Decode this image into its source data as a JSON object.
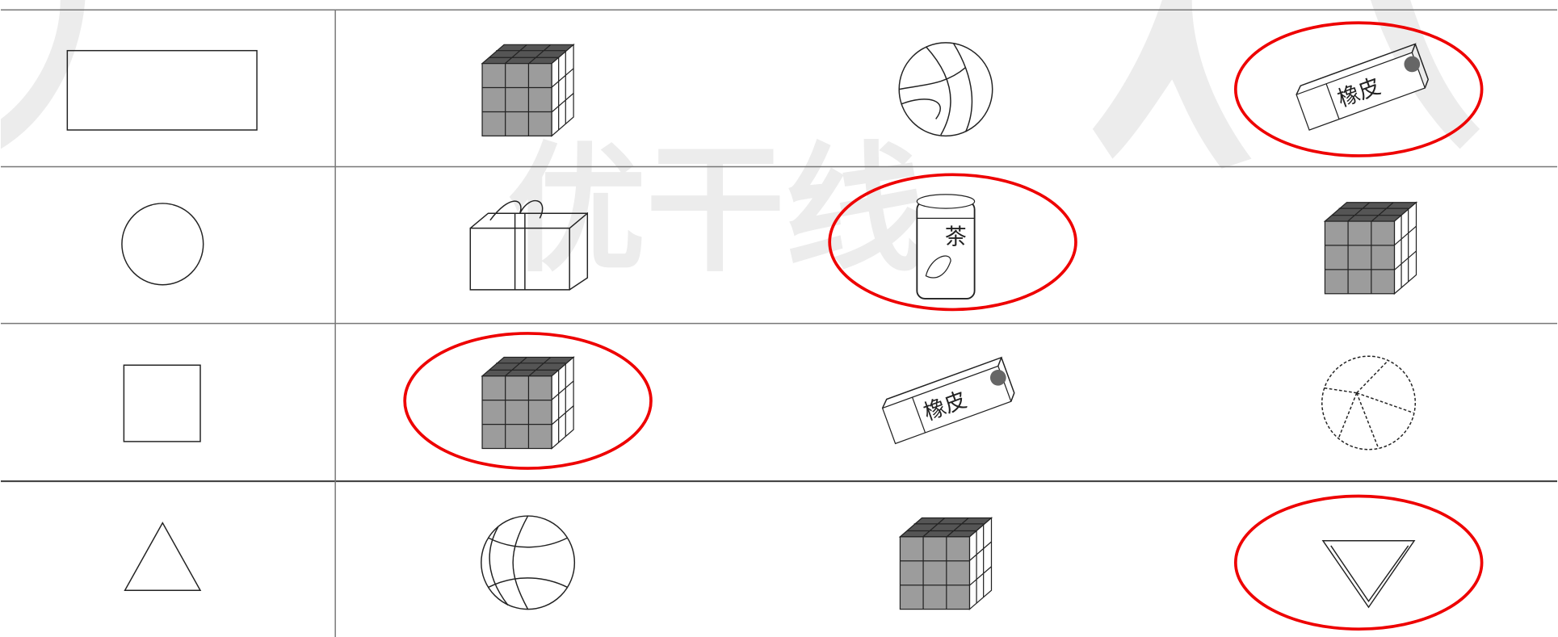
{
  "watermark": "优干线",
  "items": {
    "eraser_label": "橡皮",
    "tea_label": "茶"
  }
}
